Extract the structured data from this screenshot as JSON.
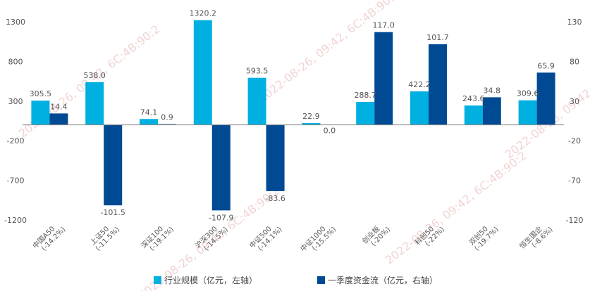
{
  "chart_data": {
    "type": "bar",
    "categories": [
      "中国A50",
      "上证50",
      "深证100",
      "沪深300",
      "中证500",
      "中证1000",
      "创业板",
      "科创50",
      "双创50",
      "恒生国企"
    ],
    "category_notes": [
      "(-14.2%)",
      "(-11.5%)",
      "(-19.1%)",
      "(-14.5%)",
      "(-14.1%)",
      "(-15.5%)",
      "(-20%)",
      "(-22%)",
      "(-19.7%)",
      "(-8.6%)"
    ],
    "series": [
      {
        "name": "行业规模（亿元，左轴）",
        "axis": "left",
        "color": "#00B0E0",
        "values": [
          305.5,
          538.0,
          74.1,
          1320.2,
          593.5,
          22.9,
          288.7,
          422.2,
          243.6,
          309.6
        ],
        "labels": [
          "305.5",
          "538.0",
          "74.1",
          "1320.2",
          "593.5",
          "22.9",
          "288.7",
          "422.2",
          "243.6",
          "309.6"
        ]
      },
      {
        "name": "一季度资金流（亿元，右轴）",
        "axis": "right",
        "color": "#004A94",
        "values": [
          14.4,
          -101.5,
          0.9,
          -107.9,
          -83.6,
          0.0,
          117.0,
          101.7,
          34.8,
          65.9
        ],
        "labels": [
          "14.4",
          "-101.5",
          "0.9",
          "-107.9",
          "-83.6",
          "0.0",
          "117.0",
          "101.7",
          "34.8",
          "65.9"
        ]
      }
    ],
    "left_axis": {
      "ylim": [
        -1200,
        1300
      ],
      "ticks": [
        "1300",
        "800",
        "300",
        "-200",
        "-700",
        "-1200"
      ]
    },
    "right_axis": {
      "ylim": [
        -120,
        130
      ],
      "ticks": [
        "130",
        "80",
        "30",
        "-20",
        "-70",
        "-120"
      ]
    },
    "legend_position": "bottom",
    "grid": false
  },
  "watermark": "2022-08-26, 09:42, 6C:4B:90:2"
}
